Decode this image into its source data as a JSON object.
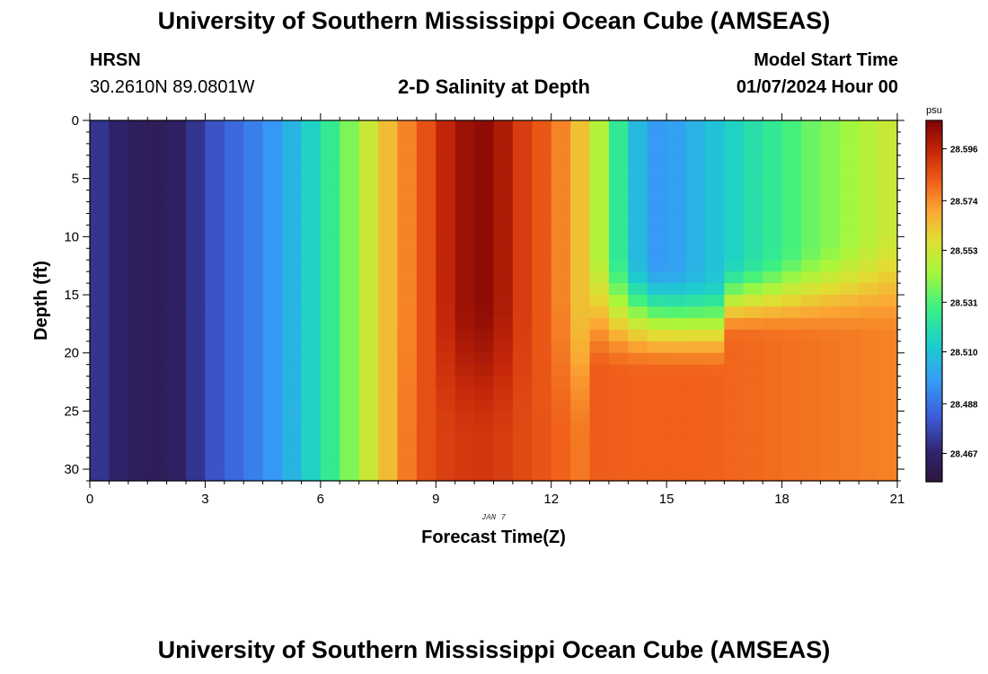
{
  "page": {
    "title_top": "University of Southern Mississippi Ocean Cube (AMSEAS)",
    "title_bottom": "University of Southern Mississippi Ocean Cube (AMSEAS)",
    "station": "HRSN",
    "location": "30.2610N  89.0801W",
    "plot_title": "2-D Salinity at Depth",
    "model_start_label": "Model Start Time",
    "model_start_value": "01/07/2024 Hour 00"
  },
  "chart_data": {
    "type": "heatmap",
    "title": "2-D Salinity at Depth",
    "xlabel": "Forecast Time(Z)",
    "ylabel": "Depth (ft)",
    "date_label": "JAN 7",
    "xlim": [
      0,
      21
    ],
    "ylim": [
      0,
      31
    ],
    "x_ticks": [
      0,
      3,
      6,
      9,
      12,
      15,
      18,
      21
    ],
    "y_ticks": [
      0,
      5,
      10,
      15,
      20,
      25,
      30
    ],
    "colorbar": {
      "units": "psu",
      "min": 28.455,
      "max": 28.608,
      "ticks": [
        "28.467",
        "28.488",
        "28.510",
        "28.531",
        "28.553",
        "28.574",
        "28.596"
      ]
    },
    "profile_surface_by_hour": [
      [
        0,
        28.475
      ],
      [
        1,
        28.463
      ],
      [
        2,
        28.461
      ],
      [
        2.5,
        28.467
      ],
      [
        3,
        28.477
      ],
      [
        3.5,
        28.483
      ],
      [
        4,
        28.488
      ],
      [
        4.5,
        28.494
      ],
      [
        5,
        28.5
      ],
      [
        5.5,
        28.51
      ],
      [
        6,
        28.52
      ],
      [
        6.5,
        28.531
      ],
      [
        7,
        28.545
      ],
      [
        7.5,
        28.558
      ],
      [
        8,
        28.572
      ],
      [
        8.5,
        28.58
      ],
      [
        9,
        28.591
      ],
      [
        9.5,
        28.6
      ],
      [
        10,
        28.605
      ],
      [
        10.5,
        28.604
      ],
      [
        11,
        28.594
      ],
      [
        11.5,
        28.586
      ],
      [
        12,
        28.582
      ],
      [
        12.5,
        28.57
      ],
      [
        13,
        28.558
      ],
      [
        13.5,
        28.535
      ],
      [
        14,
        28.515
      ],
      [
        14.5,
        28.498
      ],
      [
        15,
        28.497
      ],
      [
        15.5,
        28.502
      ],
      [
        16,
        28.507
      ],
      [
        16.5,
        28.512
      ],
      [
        17,
        28.518
      ],
      [
        17.5,
        28.523
      ],
      [
        18,
        28.527
      ],
      [
        18.5,
        28.533
      ],
      [
        19,
        28.537
      ],
      [
        19.5,
        28.541
      ],
      [
        20,
        28.545
      ],
      [
        20.5,
        28.55
      ],
      [
        21,
        28.553
      ]
    ],
    "notes": "Salinity vertically uniform from 0 to ~7.7 h; lower layer (~20-31 ft) near 28.572-28.585 psu after 13 h; fresher water (~28.50 psu) in upper 12 ft around 14-17 h."
  }
}
